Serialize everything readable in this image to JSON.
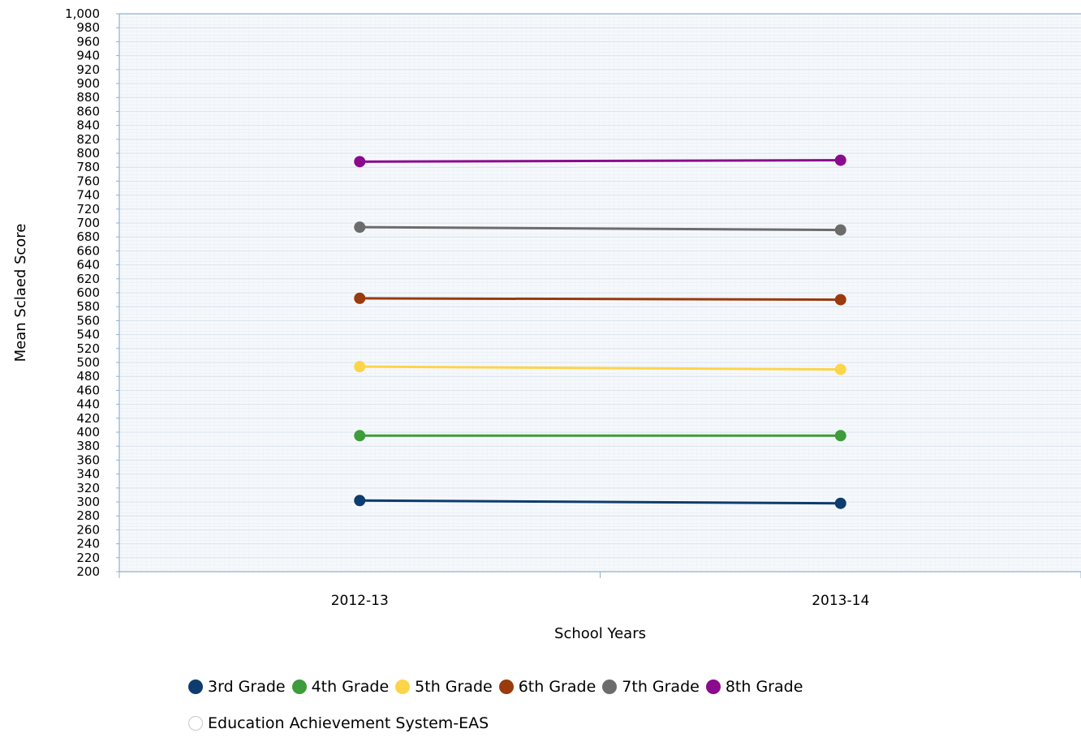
{
  "chart_data": {
    "type": "line",
    "categories": [
      "2012-13",
      "2013-14"
    ],
    "xlabel": "School Years",
    "ylabel": "Mean Sclaed Score",
    "ylim": [
      200,
      1000
    ],
    "ytick_step": 20,
    "ytick_labels": [
      "200",
      "220",
      "240",
      "260",
      "280",
      "300",
      "320",
      "340",
      "360",
      "380",
      "400",
      "420",
      "440",
      "460",
      "480",
      "500",
      "520",
      "540",
      "560",
      "580",
      "600",
      "620",
      "640",
      "660",
      "680",
      "700",
      "720",
      "740",
      "760",
      "780",
      "800",
      "820",
      "840",
      "860",
      "880",
      "900",
      "920",
      "940",
      "960",
      "980",
      "1,000"
    ],
    "grid": true,
    "legend_position": "bottom",
    "series": [
      {
        "name": "3rd Grade",
        "color": "#0d3c6e",
        "values": [
          302,
          298
        ]
      },
      {
        "name": "4th Grade",
        "color": "#3e9c3a",
        "values": [
          395,
          395
        ]
      },
      {
        "name": "5th Grade",
        "color": "#fdd44a",
        "values": [
          494,
          490
        ]
      },
      {
        "name": "6th Grade",
        "color": "#9a3a0d",
        "values": [
          592,
          590
        ]
      },
      {
        "name": "7th Grade",
        "color": "#6c6c6c",
        "values": [
          694,
          690
        ]
      },
      {
        "name": "8th Grade",
        "color": "#8b0a8e",
        "values": [
          788,
          790
        ]
      }
    ],
    "hidden_series": [
      {
        "name": "Education Achievement System-EAS",
        "color": "#ffffff"
      }
    ]
  }
}
